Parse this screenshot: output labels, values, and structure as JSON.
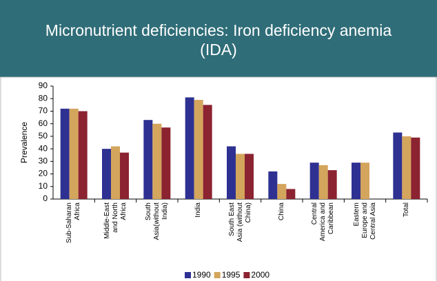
{
  "chart_data": {
    "type": "bar",
    "title": "Micronutrient deficiencies: Iron deficiency anemia (IDA)",
    "y_label": "Prevalence",
    "categories": [
      "Sub-Saharan Africa",
      "Middle-East and North Africa",
      "South Asia(without India)",
      "India",
      "South East Asia (without China)",
      "China",
      "Central America and Caribbean",
      "Eastern Europe and Central Asia",
      "Total"
    ],
    "series": [
      {
        "name": "1990",
        "color": "#2e3192",
        "values": [
          72,
          40,
          63,
          81,
          42,
          22,
          29,
          29,
          53
        ]
      },
      {
        "name": "1995",
        "color": "#d4a55c",
        "values": [
          72,
          42,
          60,
          79,
          36,
          12,
          27,
          29,
          50
        ]
      },
      {
        "name": "2000",
        "color": "#8b2331",
        "values": [
          70,
          37,
          57,
          75,
          36,
          8,
          23,
          null,
          49
        ]
      }
    ],
    "ylim": [
      0,
      90
    ],
    "yticks": [
      0,
      10,
      20,
      30,
      40,
      50,
      60,
      70,
      80,
      90
    ],
    "grid": false,
    "legend": "bottom"
  }
}
